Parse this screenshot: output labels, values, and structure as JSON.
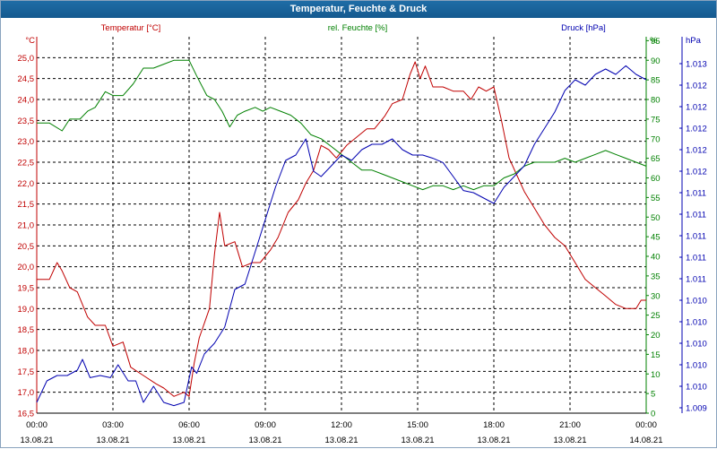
{
  "window": {
    "title": "Temperatur, Feuchte & Druck"
  },
  "colors": {
    "temperature": "#c00000",
    "humidity": "#008000",
    "pressure": "#0000b0",
    "grid": "#000000",
    "background": "#ffffff",
    "title_bar": "#1a649b"
  },
  "chart_data": {
    "type": "line",
    "title": "Temperatur, Feuchte & Druck",
    "x_ticks": [
      {
        "time": "00:00",
        "date": "13.08.21"
      },
      {
        "time": "03:00",
        "date": "13.08.21"
      },
      {
        "time": "06:00",
        "date": "13.08.21"
      },
      {
        "time": "09:00",
        "date": "13.08.21"
      },
      {
        "time": "12:00",
        "date": "13.08.21"
      },
      {
        "time": "15:00",
        "date": "13.08.21"
      },
      {
        "time": "18:00",
        "date": "13.08.21"
      },
      {
        "time": "21:00",
        "date": "13.08.21"
      },
      {
        "time": "00:00",
        "date": "14.08.21"
      }
    ],
    "x_range_hours": [
      0,
      24
    ],
    "axes": {
      "temperature": {
        "label": "Temperatur [°C]",
        "unit": "°C",
        "range": [
          16.5,
          25.5
        ],
        "ticks": [
          "16,5",
          "17,0",
          "17,5",
          "18,0",
          "18,5",
          "19,0",
          "19,5",
          "20,0",
          "20,5",
          "21,0",
          "21,5",
          "22,0",
          "22,5",
          "23,0",
          "23,5",
          "24,0",
          "24,5",
          "25,0"
        ]
      },
      "humidity": {
        "label": "rel. Feuchte [%]",
        "unit": "%",
        "range": [
          0,
          96
        ],
        "ticks": [
          "0",
          "5",
          "10",
          "15",
          "20",
          "25",
          "30",
          "35",
          "40",
          "45",
          "50",
          "55",
          "60",
          "65",
          "70",
          "75",
          "80",
          "85",
          "90",
          "95"
        ]
      },
      "pressure": {
        "label": "Druck [hPa]",
        "unit": "hPa",
        "range": [
          1009.75,
          1013.25
        ],
        "ticks": [
          "1.009",
          "1.010",
          "1.010",
          "1.010",
          "1.010",
          "1.010",
          "1.011",
          "1.011",
          "1.011",
          "1.011",
          "1.011",
          "1.012",
          "1.012",
          "1.012",
          "1.012",
          "1.012",
          "1.013"
        ]
      }
    },
    "series": [
      {
        "name": "Temperatur",
        "axis": "temperature",
        "color": "#c00000",
        "points": [
          [
            0,
            19.7
          ],
          [
            0.5,
            19.7
          ],
          [
            0.8,
            20.1
          ],
          [
            1.0,
            19.9
          ],
          [
            1.3,
            19.5
          ],
          [
            1.6,
            19.4
          ],
          [
            2.0,
            18.8
          ],
          [
            2.3,
            18.6
          ],
          [
            2.7,
            18.6
          ],
          [
            3.0,
            18.1
          ],
          [
            3.4,
            18.2
          ],
          [
            3.7,
            17.6
          ],
          [
            4.2,
            17.4
          ],
          [
            4.7,
            17.2
          ],
          [
            5.0,
            17.1
          ],
          [
            5.4,
            16.9
          ],
          [
            5.8,
            17.0
          ],
          [
            6.0,
            16.9
          ],
          [
            6.2,
            17.7
          ],
          [
            6.4,
            18.3
          ],
          [
            6.8,
            19.0
          ],
          [
            7.0,
            20.3
          ],
          [
            7.2,
            21.3
          ],
          [
            7.4,
            20.5
          ],
          [
            7.8,
            20.6
          ],
          [
            8.1,
            20.0
          ],
          [
            8.5,
            20.1
          ],
          [
            8.8,
            20.1
          ],
          [
            9.2,
            20.4
          ],
          [
            9.5,
            20.7
          ],
          [
            9.9,
            21.3
          ],
          [
            10.3,
            21.6
          ],
          [
            10.6,
            22.0
          ],
          [
            10.9,
            22.3
          ],
          [
            11.2,
            22.9
          ],
          [
            11.5,
            22.8
          ],
          [
            11.8,
            22.6
          ],
          [
            12.2,
            22.9
          ],
          [
            12.6,
            23.1
          ],
          [
            13.0,
            23.3
          ],
          [
            13.3,
            23.3
          ],
          [
            13.7,
            23.6
          ],
          [
            14.0,
            23.9
          ],
          [
            14.4,
            24.0
          ],
          [
            14.7,
            24.6
          ],
          [
            14.9,
            24.9
          ],
          [
            15.1,
            24.5
          ],
          [
            15.3,
            24.8
          ],
          [
            15.6,
            24.3
          ],
          [
            16.0,
            24.3
          ],
          [
            16.4,
            24.2
          ],
          [
            16.8,
            24.2
          ],
          [
            17.1,
            24.0
          ],
          [
            17.4,
            24.3
          ],
          [
            17.7,
            24.2
          ],
          [
            18.0,
            24.3
          ],
          [
            18.3,
            23.5
          ],
          [
            18.6,
            22.6
          ],
          [
            18.9,
            22.2
          ],
          [
            19.2,
            21.8
          ],
          [
            19.6,
            21.4
          ],
          [
            20.0,
            21.0
          ],
          [
            20.4,
            20.7
          ],
          [
            20.8,
            20.5
          ],
          [
            21.2,
            20.1
          ],
          [
            21.6,
            19.7
          ],
          [
            22.0,
            19.5
          ],
          [
            22.4,
            19.3
          ],
          [
            22.8,
            19.1
          ],
          [
            23.2,
            19.0
          ],
          [
            23.6,
            19.0
          ],
          [
            23.8,
            19.2
          ],
          [
            24.0,
            19.2
          ]
        ]
      },
      {
        "name": "rel. Feuchte",
        "axis": "humidity",
        "color": "#008000",
        "points": [
          [
            0,
            74
          ],
          [
            0.5,
            74
          ],
          [
            1.0,
            72
          ],
          [
            1.3,
            75
          ],
          [
            1.7,
            75
          ],
          [
            2.0,
            77
          ],
          [
            2.3,
            78
          ],
          [
            2.7,
            82
          ],
          [
            3.0,
            81
          ],
          [
            3.4,
            81
          ],
          [
            3.8,
            84
          ],
          [
            4.2,
            88
          ],
          [
            4.6,
            88
          ],
          [
            5.0,
            89
          ],
          [
            5.4,
            90
          ],
          [
            5.8,
            90
          ],
          [
            6.0,
            90
          ],
          [
            6.3,
            86
          ],
          [
            6.7,
            81
          ],
          [
            7.0,
            80
          ],
          [
            7.3,
            77
          ],
          [
            7.6,
            73
          ],
          [
            7.9,
            76
          ],
          [
            8.2,
            77
          ],
          [
            8.6,
            78
          ],
          [
            8.9,
            77
          ],
          [
            9.2,
            78
          ],
          [
            9.6,
            77
          ],
          [
            10.0,
            76
          ],
          [
            10.4,
            74
          ],
          [
            10.8,
            71
          ],
          [
            11.2,
            70
          ],
          [
            11.6,
            68
          ],
          [
            12.0,
            66
          ],
          [
            12.4,
            64
          ],
          [
            12.8,
            62
          ],
          [
            13.2,
            62
          ],
          [
            13.6,
            61
          ],
          [
            14.0,
            60
          ],
          [
            14.4,
            59
          ],
          [
            14.8,
            58
          ],
          [
            15.2,
            57
          ],
          [
            15.6,
            58
          ],
          [
            16.0,
            58
          ],
          [
            16.4,
            57
          ],
          [
            16.8,
            58
          ],
          [
            17.2,
            57
          ],
          [
            17.6,
            58
          ],
          [
            18.0,
            58
          ],
          [
            18.4,
            60
          ],
          [
            18.8,
            61
          ],
          [
            19.2,
            63
          ],
          [
            19.6,
            64
          ],
          [
            20.0,
            64
          ],
          [
            20.4,
            64
          ],
          [
            20.8,
            65
          ],
          [
            21.2,
            64
          ],
          [
            21.6,
            65
          ],
          [
            22.0,
            66
          ],
          [
            22.4,
            67
          ],
          [
            22.8,
            66
          ],
          [
            23.2,
            65
          ],
          [
            23.6,
            64
          ],
          [
            24.0,
            63
          ]
        ]
      },
      {
        "name": "Druck",
        "axis": "pressure",
        "color": "#0000b0",
        "points": [
          [
            0,
            1009.85
          ],
          [
            0.4,
            1010.05
          ],
          [
            0.8,
            1010.1
          ],
          [
            1.2,
            1010.1
          ],
          [
            1.6,
            1010.15
          ],
          [
            1.8,
            1010.25
          ],
          [
            2.1,
            1010.08
          ],
          [
            2.5,
            1010.1
          ],
          [
            2.9,
            1010.08
          ],
          [
            3.2,
            1010.2
          ],
          [
            3.6,
            1010.05
          ],
          [
            3.9,
            1010.05
          ],
          [
            4.2,
            1009.85
          ],
          [
            4.6,
            1010.0
          ],
          [
            5.0,
            1009.85
          ],
          [
            5.4,
            1009.82
          ],
          [
            5.8,
            1009.85
          ],
          [
            6.1,
            1010.18
          ],
          [
            6.3,
            1010.12
          ],
          [
            6.6,
            1010.3
          ],
          [
            7.0,
            1010.4
          ],
          [
            7.4,
            1010.55
          ],
          [
            7.8,
            1010.9
          ],
          [
            8.2,
            1010.95
          ],
          [
            8.6,
            1011.25
          ],
          [
            9.0,
            1011.55
          ],
          [
            9.4,
            1011.85
          ],
          [
            9.8,
            1012.1
          ],
          [
            10.2,
            1012.15
          ],
          [
            10.6,
            1012.3
          ],
          [
            10.9,
            1012.0
          ],
          [
            11.2,
            1011.95
          ],
          [
            11.6,
            1012.05
          ],
          [
            12.0,
            1012.15
          ],
          [
            12.4,
            1012.1
          ],
          [
            12.8,
            1012.2
          ],
          [
            13.2,
            1012.25
          ],
          [
            13.6,
            1012.25
          ],
          [
            14.0,
            1012.3
          ],
          [
            14.4,
            1012.2
          ],
          [
            14.8,
            1012.15
          ],
          [
            15.2,
            1012.15
          ],
          [
            15.6,
            1012.12
          ],
          [
            16.0,
            1012.08
          ],
          [
            16.4,
            1011.95
          ],
          [
            16.8,
            1011.82
          ],
          [
            17.2,
            1011.8
          ],
          [
            17.6,
            1011.75
          ],
          [
            18.0,
            1011.7
          ],
          [
            18.4,
            1011.85
          ],
          [
            18.8,
            1011.95
          ],
          [
            19.2,
            1012.05
          ],
          [
            19.6,
            1012.25
          ],
          [
            20.0,
            1012.4
          ],
          [
            20.4,
            1012.55
          ],
          [
            20.8,
            1012.75
          ],
          [
            21.2,
            1012.85
          ],
          [
            21.6,
            1012.8
          ],
          [
            22.0,
            1012.9
          ],
          [
            22.4,
            1012.95
          ],
          [
            22.8,
            1012.9
          ],
          [
            23.2,
            1012.98
          ],
          [
            23.6,
            1012.9
          ],
          [
            24.0,
            1012.85
          ]
        ]
      }
    ],
    "grid": true
  }
}
